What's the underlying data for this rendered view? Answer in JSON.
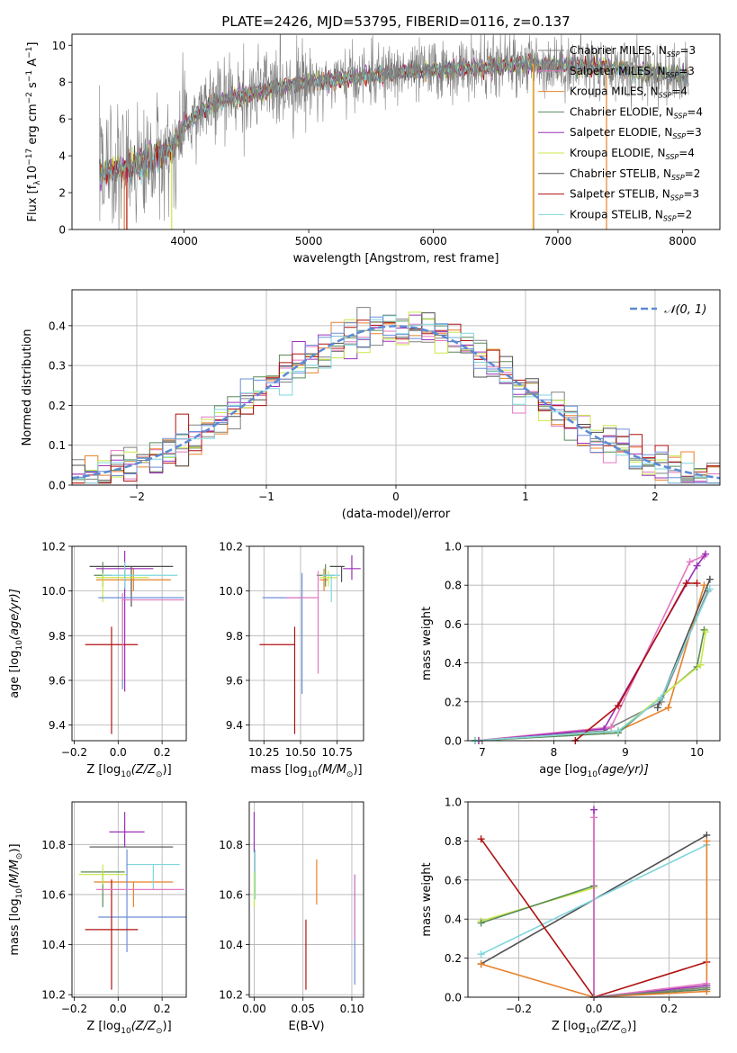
{
  "figure_title": "PLATE=2426, MJD=53795, FIBERID=0116, z=0.137",
  "colors": {
    "chabrier_miles": "#808080",
    "salpeter_miles": "#e377c2",
    "kroupa_miles": "#e8802a",
    "chabrier_elodie": "#5a8a5a",
    "salpeter_elodie": "#9b30b8",
    "kroupa_elodie": "#c8e84a",
    "chabrier_stelib": "#505050",
    "salpeter_stelib": "#b01010",
    "kroupa_stelib": "#7fd6dc",
    "normal_fit": "#5b8ad6",
    "blue_extra": "#6b8fd8"
  },
  "chart_data": [
    {
      "id": "spectrum",
      "type": "line",
      "title": "PLATE=2426, MJD=53795, FIBERID=0116, z=0.137",
      "xlabel": "wavelength [Angstrom, rest frame]",
      "ylabel": "Flux [f",
      "ylabel_sub": "λ",
      "ylabel_rest": "10",
      "ylabel_exp1": "−17",
      "ylabel_unit": " erg cm",
      "ylabel_exp2": "−2",
      "ylabel_unit2": " s",
      "ylabel_exp3": "−1",
      "ylabel_unit3": " A",
      "ylabel_exp4": "−1",
      "ylabel_end": "]",
      "xlim": [
        3100,
        8300
      ],
      "ylim": [
        0,
        10.6
      ],
      "xticks": [
        4000,
        5000,
        6000,
        7000,
        8000
      ],
      "yticks": [
        0,
        2,
        4,
        6,
        8,
        10
      ],
      "legend_position": "upper-right",
      "legend": [
        {
          "name": "Chabrier MILES, N",
          "sub": "SSP",
          "val": "=3",
          "color": "#808080"
        },
        {
          "name": "Salpeter MILES, N",
          "sub": "SSP",
          "val": "=3",
          "color": "#e377c2"
        },
        {
          "name": "Kroupa MILES, N",
          "sub": "SSP",
          "val": "=4",
          "color": "#e8802a"
        },
        {
          "name": "Chabrier ELODIE, N",
          "sub": "SSP",
          "val": "=4",
          "color": "#5a8a5a"
        },
        {
          "name": "Salpeter ELODIE, N",
          "sub": "SSP",
          "val": "=3",
          "color": "#9b30b8"
        },
        {
          "name": "Kroupa ELODIE, N",
          "sub": "SSP",
          "val": "=4",
          "color": "#c8e84a"
        },
        {
          "name": "Chabrier STELIB, N",
          "sub": "SSP",
          "val": "=2",
          "color": "#505050"
        },
        {
          "name": "Salpeter STELIB, N",
          "sub": "SSP",
          "val": "=3",
          "color": "#b01010"
        },
        {
          "name": "Kroupa STELIB, N",
          "sub": "SSP",
          "val": "=2",
          "color": "#7fd6dc"
        }
      ],
      "continuum": {
        "x": [
          3300,
          3400,
          3500,
          3600,
          3700,
          3800,
          3900,
          4000,
          4100,
          4200,
          4300,
          4400,
          4500,
          4600,
          4700,
          4800,
          4900,
          5000,
          5200,
          5400,
          5600,
          5800,
          6000,
          6200,
          6400,
          6600,
          6800,
          7000,
          7200,
          7400,
          7600,
          7800,
          8000,
          8050
        ],
        "y": [
          3.0,
          3.2,
          3.3,
          3.5,
          3.6,
          4.0,
          4.3,
          5.6,
          6.2,
          6.7,
          7.0,
          7.2,
          7.3,
          7.5,
          7.7,
          7.8,
          7.9,
          8.0,
          8.1,
          8.3,
          8.4,
          8.6,
          8.6,
          8.7,
          8.8,
          8.9,
          9.0,
          8.9,
          8.9,
          8.8,
          8.6,
          8.5,
          8.4,
          8.4
        ]
      }
    },
    {
      "id": "residuals",
      "type": "histogram",
      "xlabel": "(data-model)/error",
      "ylabel": "Normed distribution",
      "xlim": [
        -2.5,
        2.5
      ],
      "ylim": [
        0,
        0.49
      ],
      "xticks": [
        -2,
        -1,
        0,
        1,
        2
      ],
      "yticks": [
        0.0,
        0.1,
        0.2,
        0.3,
        0.4
      ],
      "legend_position": "upper-right",
      "legend": [
        {
          "name": "𝒩(0, 1)",
          "color": "#5b8ad6"
        }
      ],
      "bin_width": 0.1
    },
    {
      "id": "age-vs-Z",
      "type": "errorbar",
      "xlabel": "Z [log",
      "xlabel_sub": "10",
      "xlabel_rest": "(Z/Z",
      "xlabel_sun": "⊙",
      "xlabel_end": ")]",
      "ylabel": "age  [log",
      "ylabel_sub": "10",
      "ylabel_rest": "(age/yr)]",
      "xlim": [
        -0.21,
        0.31
      ],
      "ylim": [
        9.33,
        10.2
      ],
      "xticks": [
        -0.2,
        0.0,
        0.2
      ],
      "yticks": [
        9.4,
        9.6,
        9.8,
        10.0,
        10.2
      ],
      "points": [
        {
          "x": 0.06,
          "y": 10.11,
          "xerr": [
            0.19,
            0.19
          ],
          "yerr": [
            0.18,
            0.0
          ],
          "color": "#505050"
        },
        {
          "x": 0.07,
          "y": 10.05,
          "xerr": [
            0.17,
            0.17
          ],
          "yerr": [
            0.05,
            0.05
          ],
          "color": "#e8802a"
        },
        {
          "x": -0.07,
          "y": 10.07,
          "xerr": [
            0.04,
            0.04
          ],
          "yerr": [
            0.05,
            0.06
          ],
          "color": "#5a8a5a"
        },
        {
          "x": 0.03,
          "y": 10.1,
          "xerr": [
            0.13,
            0.13
          ],
          "yerr": [
            0.55,
            0.08
          ],
          "color": "#9b30b8"
        },
        {
          "x": -0.07,
          "y": 10.06,
          "xerr": [
            0.03,
            0.21
          ],
          "yerr": [
            0.11,
            0.02
          ],
          "color": "#c8e84a"
        },
        {
          "x": 0.03,
          "y": 10.07,
          "xerr": [
            0.1,
            0.24
          ],
          "yerr": [
            0.06,
            0.06
          ],
          "color": "#7fd6dc"
        },
        {
          "x": 0.02,
          "y": 9.97,
          "xerr": [
            0.11,
            0.28
          ],
          "yerr": [
            0.41,
            0.0
          ],
          "color": "#6b8fd8"
        },
        {
          "x": -0.03,
          "y": 9.76,
          "xerr": [
            0.12,
            0.12
          ],
          "yerr": [
            0.4,
            0.08
          ],
          "color": "#b01010"
        },
        {
          "x": 0.02,
          "y": 9.96,
          "xerr": [
            0.0,
            0.28
          ],
          "yerr": [
            0.36,
            0.03
          ],
          "color": "#e377c2"
        }
      ]
    },
    {
      "id": "age-vs-mass",
      "type": "errorbar",
      "xlabel": "mass [log",
      "xlabel_sub": "10",
      "xlabel_rest": "(M/M",
      "xlabel_sun": "⊙",
      "xlabel_end": ")]",
      "xlim": [
        10.15,
        10.93
      ],
      "ylim": [
        9.33,
        10.2
      ],
      "xticks": [
        10.25,
        10.5,
        10.75
      ],
      "xticklabels": [
        "10.25",
        "10.50",
        "10.75"
      ],
      "yticks": [
        9.4,
        9.6,
        9.8,
        10.0,
        10.2
      ],
      "points": [
        {
          "x": 10.78,
          "y": 10.11,
          "xerr": [
            0.08,
            0.02
          ],
          "yerr": [
            0.07,
            0.0
          ],
          "color": "#505050"
        },
        {
          "x": 10.66,
          "y": 10.05,
          "xerr": [
            0.03,
            0.03
          ],
          "yerr": [
            0.05,
            0.05
          ],
          "color": "#e8802a"
        },
        {
          "x": 10.67,
          "y": 10.07,
          "xerr": [
            0.06,
            0.06
          ],
          "yerr": [
            0.05,
            0.05
          ],
          "color": "#5a8a5a"
        },
        {
          "x": 10.85,
          "y": 10.1,
          "xerr": [
            0.06,
            0.06
          ],
          "yerr": [
            0.05,
            0.06
          ],
          "color": "#9b30b8"
        },
        {
          "x": 10.69,
          "y": 10.06,
          "xerr": [
            0.06,
            0.06
          ],
          "yerr": [
            0.04,
            0.03
          ],
          "color": "#c8e84a"
        },
        {
          "x": 10.71,
          "y": 10.07,
          "xerr": [
            0.06,
            0.06
          ],
          "yerr": [
            0.12,
            0.0
          ],
          "color": "#7fd6dc"
        },
        {
          "x": 10.51,
          "y": 9.97,
          "xerr": [
            0.27,
            0.0
          ],
          "yerr": [
            0.43,
            0.11
          ],
          "color": "#6b8fd8"
        },
        {
          "x": 10.46,
          "y": 9.76,
          "xerr": [
            0.24,
            0.0
          ],
          "yerr": [
            0.4,
            0.08
          ],
          "color": "#b01010"
        },
        {
          "x": 10.62,
          "y": 9.97,
          "xerr": [
            0.22,
            0.0
          ],
          "yerr": [
            0.34,
            0.12
          ],
          "color": "#e377c2"
        }
      ]
    },
    {
      "id": "weight-vs-age",
      "type": "line",
      "xlabel": "age  [log",
      "xlabel_sub": "10",
      "xlabel_rest": "(age/yr)]",
      "ylabel": "mass weight",
      "xlim": [
        6.8,
        10.32
      ],
      "ylim": [
        0,
        1.0
      ],
      "xticks": [
        7,
        8,
        9,
        10
      ],
      "yticks": [
        0.0,
        0.2,
        0.4,
        0.6,
        0.8,
        1.0
      ],
      "series": [
        {
          "color": "#808080",
          "x": [
            6.9,
            8.7,
            9.5,
            10.15
          ],
          "y": [
            0.0,
            0.05,
            0.2,
            0.77
          ]
        },
        {
          "color": "#e377c2",
          "x": [
            6.9,
            8.8,
            9.9,
            10.1
          ],
          "y": [
            0.0,
            0.07,
            0.92,
            0.95
          ]
        },
        {
          "color": "#e8802a",
          "x": [
            6.95,
            8.9,
            9.6,
            10.1
          ],
          "y": [
            0.0,
            0.05,
            0.17,
            0.8
          ]
        },
        {
          "color": "#5a8a5a",
          "x": [
            6.9,
            8.9,
            10.0,
            10.1
          ],
          "y": [
            0.0,
            0.04,
            0.38,
            0.57
          ]
        },
        {
          "color": "#9b30b8",
          "x": [
            6.95,
            8.7,
            10.0,
            10.12
          ],
          "y": [
            0.0,
            0.06,
            0.9,
            0.96
          ]
        },
        {
          "color": "#c8e84a",
          "x": [
            6.9,
            8.9,
            10.05,
            10.12
          ],
          "y": [
            0.0,
            0.05,
            0.39,
            0.56
          ]
        },
        {
          "color": "#505050",
          "x": [
            9.45,
            10.18
          ],
          "y": [
            0.17,
            0.83
          ]
        },
        {
          "color": "#b01010",
          "x": [
            8.3,
            8.9,
            9.85,
            10.0
          ],
          "y": [
            0.0,
            0.18,
            0.81,
            0.81
          ]
        },
        {
          "color": "#7fd6dc",
          "x": [
            6.9,
            8.9,
            9.5,
            10.18
          ],
          "y": [
            0.0,
            0.05,
            0.22,
            0.78
          ]
        }
      ]
    },
    {
      "id": "mass-vs-Z",
      "type": "errorbar",
      "xlabel": "Z [log",
      "xlabel_sub": "10",
      "xlabel_rest": "(Z/Z",
      "xlabel_sun": "⊙",
      "xlabel_end": ")]",
      "ylabel": "mass [log",
      "ylabel_sub": "10",
      "ylabel_rest": "(M/M",
      "ylabel_sun": "⊙",
      "ylabel_end": ")]",
      "xlim": [
        -0.21,
        0.31
      ],
      "ylim": [
        10.19,
        10.97
      ],
      "xticks": [
        -0.2,
        0.0,
        0.2
      ],
      "yticks": [
        10.2,
        10.4,
        10.6,
        10.8
      ],
      "points": [
        {
          "x": 0.06,
          "y": 10.79,
          "xerr": [
            0.19,
            0.19
          ],
          "yerr": [
            0.0,
            0.0
          ],
          "color": "#505050"
        },
        {
          "x": 0.07,
          "y": 10.65,
          "xerr": [
            0.18,
            0.18
          ],
          "yerr": [
            0.1,
            0.0
          ],
          "color": "#e8802a"
        },
        {
          "x": -0.07,
          "y": 10.69,
          "xerr": [
            0.1,
            0.1
          ],
          "yerr": [
            0.14,
            0.0
          ],
          "color": "#5a8a5a"
        },
        {
          "x": 0.03,
          "y": 10.85,
          "xerr": [
            0.07,
            0.09
          ],
          "yerr": [
            0.06,
            0.08
          ],
          "color": "#9b30b8"
        },
        {
          "x": -0.07,
          "y": 10.68,
          "xerr": [
            0.11,
            0.11
          ],
          "yerr": [
            0.04,
            0.04
          ],
          "color": "#c8e84a"
        },
        {
          "x": 0.16,
          "y": 10.72,
          "xerr": [
            0.12,
            0.12
          ],
          "yerr": [
            0.1,
            0.0
          ],
          "color": "#7fd6dc"
        },
        {
          "x": 0.04,
          "y": 10.51,
          "xerr": [
            0.13,
            0.27
          ],
          "yerr": [
            0.14,
            0.27
          ],
          "color": "#6b8fd8"
        },
        {
          "x": -0.03,
          "y": 10.46,
          "xerr": [
            0.12,
            0.12
          ],
          "yerr": [
            0.24,
            0.2
          ],
          "color": "#b01010"
        },
        {
          "x": 0.06,
          "y": 10.62,
          "xerr": [
            0.16,
            0.24
          ],
          "yerr": [
            0.0,
            0.0
          ],
          "color": "#e377c2"
        }
      ]
    },
    {
      "id": "mass-vs-EBV",
      "type": "errorbar",
      "xlabel": "E(B-V)",
      "xlim": [
        -0.005,
        0.112
      ],
      "ylim": [
        10.19,
        10.97
      ],
      "xticks": [
        0.0,
        0.05,
        0.1
      ],
      "xticklabels": [
        "0.00",
        "0.05",
        "0.10"
      ],
      "yticks": [
        10.2,
        10.4,
        10.6,
        10.8
      ],
      "points": [
        {
          "x": 0.0,
          "y": 10.85,
          "xerr": [
            0,
            0
          ],
          "yerr": [
            0.08,
            0.08
          ],
          "color": "#9b30b8"
        },
        {
          "x": 0.001,
          "y": 10.68,
          "xerr": [
            0,
            0
          ],
          "yerr": [
            0.1,
            0.1
          ],
          "color": "#7fd6dc"
        },
        {
          "x": 0.0,
          "y": 10.62,
          "xerr": [
            0,
            0
          ],
          "yerr": [
            0.07,
            0.07
          ],
          "color": "#c8e84a"
        },
        {
          "x": 0.064,
          "y": 10.65,
          "xerr": [
            0,
            0
          ],
          "yerr": [
            0.09,
            0.09
          ],
          "color": "#e8802a"
        },
        {
          "x": 0.053,
          "y": 10.36,
          "xerr": [
            0,
            0
          ],
          "yerr": [
            0.14,
            0.14
          ],
          "color": "#b01010"
        },
        {
          "x": 0.103,
          "y": 10.46,
          "xerr": [
            0,
            0
          ],
          "yerr": [
            0.22,
            0.22
          ],
          "color": "#6b8fd8"
        },
        {
          "x": 0.103,
          "y": 10.55,
          "xerr": [
            0,
            0
          ],
          "yerr": [
            0.13,
            0.13
          ],
          "color": "#e377c2"
        }
      ]
    },
    {
      "id": "weight-vs-Z",
      "type": "line",
      "xlabel": "Z [log",
      "xlabel_sub": "10",
      "xlabel_rest": "(Z/Z",
      "xlabel_sun": "⊙",
      "xlabel_end": ")]",
      "ylabel": "mass weight",
      "xlim": [
        -0.335,
        0.335
      ],
      "ylim": [
        0,
        1.0
      ],
      "xticks": [
        -0.2,
        0.0,
        0.2
      ],
      "yticks": [
        0.0,
        0.2,
        0.4,
        0.6,
        0.8,
        1.0
      ],
      "series": [
        {
          "color": "#505050",
          "x": [
            -0.3,
            0.3
          ],
          "y": [
            0.17,
            0.83
          ]
        },
        {
          "color": "#7fd6dc",
          "x": [
            -0.3,
            0.3
          ],
          "y": [
            0.22,
            0.78
          ]
        },
        {
          "color": "#c8e84a",
          "x": [
            -0.3,
            0.0,
            0.0,
            0.3
          ],
          "y": [
            0.39,
            0.56,
            0.0,
            0.05
          ]
        },
        {
          "color": "#5a8a5a",
          "x": [
            -0.3,
            0.0,
            0.0,
            0.3
          ],
          "y": [
            0.38,
            0.57,
            0.0,
            0.04
          ]
        },
        {
          "color": "#b01010",
          "x": [
            -0.3,
            0.0,
            0.3
          ],
          "y": [
            0.81,
            0.0,
            0.18
          ]
        },
        {
          "color": "#e8802a",
          "x": [
            -0.3,
            0.0,
            0.3,
            0.3
          ],
          "y": [
            0.17,
            0.0,
            0.03,
            0.8
          ]
        },
        {
          "color": "#9b30b8",
          "x": [
            0.0,
            0.0,
            0.3
          ],
          "y": [
            0.96,
            0.0,
            0.06
          ]
        },
        {
          "color": "#e377c2",
          "x": [
            0.0,
            0.0,
            0.3
          ],
          "y": [
            0.92,
            0.0,
            0.07
          ]
        },
        {
          "color": "#808080",
          "x": [
            0.0,
            0.3
          ],
          "y": [
            0.0,
            0.05
          ]
        }
      ]
    }
  ]
}
